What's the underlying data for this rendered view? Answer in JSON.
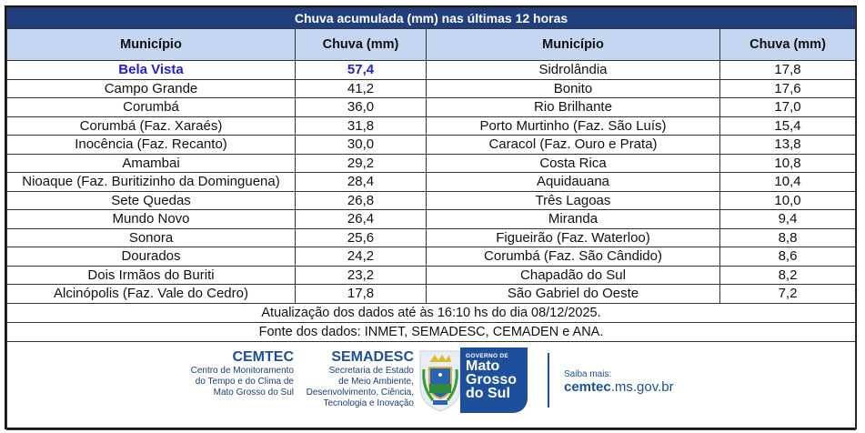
{
  "table": {
    "title": "Chuva acumulada (mm) nas últimas 12 horas",
    "headers": {
      "left_municipio": "Município",
      "left_chuva": "Chuva (mm)",
      "right_municipio": "Município",
      "right_chuva": "Chuva (mm)"
    },
    "highlight_color": "#1f1fd6",
    "title_bg": "#213f7f",
    "header_bg": "#c5d7f0",
    "left": [
      {
        "municipio": "Bela Vista",
        "chuva": "57,4",
        "highlight": true
      },
      {
        "municipio": "Campo Grande",
        "chuva": "41,2"
      },
      {
        "municipio": "Corumbá",
        "chuva": "36,0"
      },
      {
        "municipio": "Corumbá (Faz. Xaraés)",
        "chuva": "31,8"
      },
      {
        "municipio": "Inocência (Faz. Recanto)",
        "chuva": "30,0"
      },
      {
        "municipio": "Amambai",
        "chuva": "29,2"
      },
      {
        "municipio": "Nioaque (Faz. Buritizinho da Dominguena)",
        "chuva": "28,4"
      },
      {
        "municipio": "Sete Quedas",
        "chuva": "26,8"
      },
      {
        "municipio": "Mundo Novo",
        "chuva": "26,4"
      },
      {
        "municipio": "Sonora",
        "chuva": "25,6"
      },
      {
        "municipio": "Dourados",
        "chuva": "24,2"
      },
      {
        "municipio": "Dois Irmãos do Buriti",
        "chuva": "23,2"
      },
      {
        "municipio": "Alcinópolis (Faz. Vale do Cedro)",
        "chuva": "17,8"
      }
    ],
    "right": [
      {
        "municipio": "Sidrolândia",
        "chuva": "17,8"
      },
      {
        "municipio": "Bonito",
        "chuva": "17,6"
      },
      {
        "municipio": "Rio Brilhante",
        "chuva": "17,0"
      },
      {
        "municipio": "Porto Murtinho (Faz. São Luís)",
        "chuva": "15,4"
      },
      {
        "municipio": "Caracol (Faz. Ouro e Prata)",
        "chuva": "13,8"
      },
      {
        "municipio": "Costa Rica",
        "chuva": "10,8"
      },
      {
        "municipio": "Aquidauana",
        "chuva": "10,4"
      },
      {
        "municipio": "Três Lagoas",
        "chuva": "10,0"
      },
      {
        "municipio": "Miranda",
        "chuva": "9,4"
      },
      {
        "municipio": "Figueirão (Faz. Waterloo)",
        "chuva": "8,8"
      },
      {
        "municipio": "Corumbá (Faz. São Cândido)",
        "chuva": "8,6"
      },
      {
        "municipio": "Chapadão do Sul",
        "chuva": "8,2"
      },
      {
        "municipio": "São Gabriel do Oeste",
        "chuva": "7,2"
      }
    ],
    "update_note": "Atualização dos dados até às 16:10 hs do dia 08/12/2025.",
    "source_note": "Fonte dos dados: INMET, SEMADESC, CEMADEN e ANA."
  },
  "footer": {
    "cemtec": {
      "name": "CEMTEC",
      "line1": "Centro de Monitoramento",
      "line2": "do Tempo e do Clima de",
      "line3": "Mato Grosso do Sul"
    },
    "semadesc": {
      "name": "SEMADESC",
      "line1": "Secretaria de Estado",
      "line2": "de Meio Ambiente,",
      "line3": "Desenvolvimento, Ciência,",
      "line4": "Tecnologia e Inovação"
    },
    "governo": {
      "small": "GOVERNO DE",
      "line1": "Mato",
      "line2": "Grosso",
      "line3": "do Sul",
      "icon": "state-coat-of-arms-icon"
    },
    "saiba": {
      "label": "Saiba mais:",
      "url_bold": "cemtec",
      "url_rest": ".ms.gov.br"
    }
  }
}
